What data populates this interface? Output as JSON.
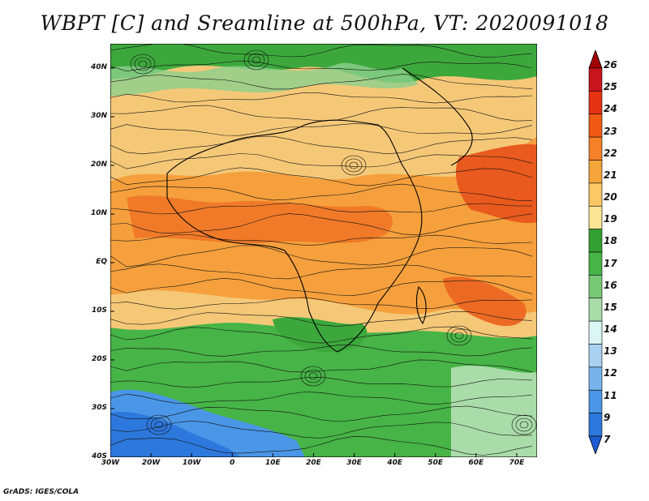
{
  "title": "WBPT [C] and Sreamline at 500hPa, VT: 2020091018",
  "footer": "GrADS: IGES/COLA",
  "map": {
    "lat_ticks": [
      {
        "label": "40N",
        "value": 40
      },
      {
        "label": "30N",
        "value": 30
      },
      {
        "label": "20N",
        "value": 20
      },
      {
        "label": "10N",
        "value": 10
      },
      {
        "label": "EQ",
        "value": 0
      },
      {
        "label": "10S",
        "value": -10
      },
      {
        "label": "20S",
        "value": -20
      },
      {
        "label": "30S",
        "value": -30
      },
      {
        "label": "40S",
        "value": -40
      }
    ],
    "lon_ticks": [
      {
        "label": "30W",
        "value": -30
      },
      {
        "label": "20W",
        "value": -20
      },
      {
        "label": "10W",
        "value": -10
      },
      {
        "label": "0",
        "value": 0
      },
      {
        "label": "10E",
        "value": 10
      },
      {
        "label": "20E",
        "value": 20
      },
      {
        "label": "30E",
        "value": 30
      },
      {
        "label": "40E",
        "value": 40
      },
      {
        "label": "50E",
        "value": 50
      },
      {
        "label": "60E",
        "value": 60
      },
      {
        "label": "70E",
        "value": 70
      }
    ],
    "lon_range": [
      -30,
      75
    ],
    "lat_range": [
      -40,
      45
    ]
  },
  "colorbar": {
    "levels": [
      "26",
      "25",
      "24",
      "23",
      "22",
      "21",
      "20",
      "19",
      "18",
      "17",
      "16",
      "15",
      "14",
      "13",
      "12",
      "11",
      "9",
      "7"
    ],
    "colors": [
      "#a00000",
      "#c8141e",
      "#e63214",
      "#f05a14",
      "#f58228",
      "#f5a53c",
      "#fac864",
      "#fae696",
      "#32a032",
      "#46b446",
      "#78c878",
      "#aadcaa",
      "#dcf5f5",
      "#aad2f0",
      "#78b4eb",
      "#4b96e6",
      "#2d78dc",
      "#1e5ad2"
    ]
  }
}
